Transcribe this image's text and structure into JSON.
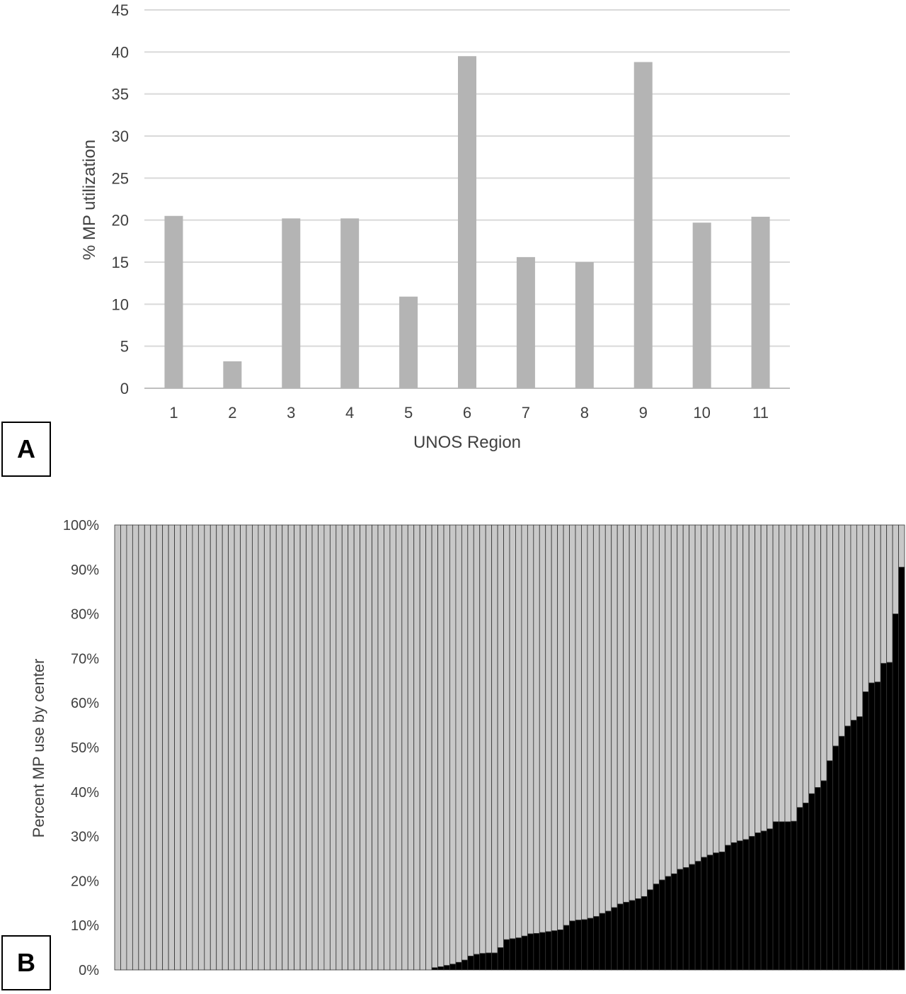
{
  "panels": {
    "a_label": "A",
    "b_label": "B"
  },
  "chart_data": [
    {
      "type": "bar",
      "panel": "A",
      "title": "",
      "xlabel": "UNOS Region",
      "ylabel": "% MP utilization",
      "categories": [
        "1",
        "2",
        "3",
        "4",
        "5",
        "6",
        "7",
        "8",
        "9",
        "10",
        "11"
      ],
      "values": [
        20.5,
        3.2,
        20.2,
        20.2,
        10.9,
        39.5,
        15.6,
        15.0,
        38.8,
        19.7,
        20.4
      ],
      "ylim": [
        0,
        45
      ],
      "yticks": [
        "0",
        "5",
        "10",
        "15",
        "20",
        "25",
        "30",
        "35",
        "40",
        "45"
      ],
      "grid": true,
      "colors": {
        "bar": "#b4b4b4",
        "grid": "#d9d9d9"
      }
    },
    {
      "type": "bar",
      "panel": "B",
      "stacked": true,
      "title": "",
      "xlabel": "",
      "ylabel": "Percent MP use by center",
      "ylim": [
        0,
        100
      ],
      "yticks": [
        "0%",
        "10%",
        "20%",
        "30%",
        "40%",
        "50%",
        "60%",
        "70%",
        "80%",
        "90%",
        "100%"
      ],
      "grid": false,
      "colors": {
        "mp": "#000000",
        "remainder": "#c8c8c8",
        "edge": "#333333"
      },
      "zero_centers": 53,
      "values": [
        0.5,
        0.7,
        1.0,
        1.3,
        1.7,
        2.2,
        3.1,
        3.5,
        3.7,
        3.8,
        3.8,
        5.0,
        6.8,
        7.0,
        7.2,
        7.6,
        8.1,
        8.2,
        8.4,
        8.6,
        8.8,
        9.0,
        10.0,
        11.0,
        11.2,
        11.3,
        11.6,
        12.0,
        12.7,
        13.2,
        14.0,
        14.8,
        15.2,
        15.6,
        16.0,
        16.5,
        18.0,
        19.3,
        20.2,
        21.0,
        21.6,
        22.6,
        23.0,
        23.7,
        24.4,
        25.3,
        25.8,
        26.3,
        26.5,
        28.0,
        28.6,
        29.0,
        29.3,
        30.0,
        30.8,
        31.2,
        31.7,
        33.3,
        33.3,
        33.3,
        33.4,
        36.5,
        37.5,
        39.6,
        41.0,
        42.5,
        47.0,
        50.3,
        52.5,
        54.8,
        56.1,
        56.9,
        62.5,
        64.5,
        64.7,
        68.9,
        69.1,
        80.0,
        90.5
      ]
    }
  ]
}
